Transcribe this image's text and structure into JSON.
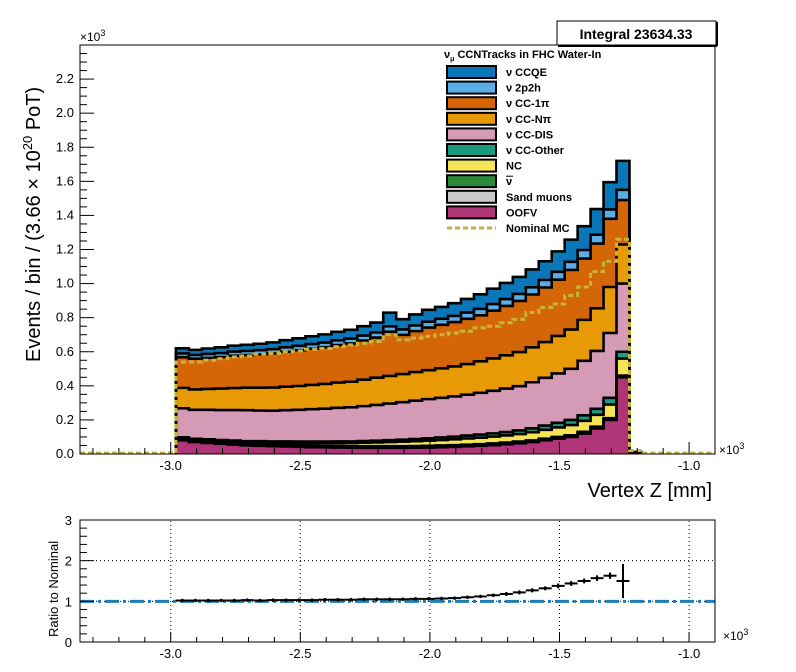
{
  "chart_data": [
    {
      "type": "area",
      "stacked": true,
      "histogram": true,
      "title": "",
      "xlabel": "Vertex Z [mm]",
      "ylabel_parts": [
        "Events / bin / (3.66 ",
        "× 10",
        "20",
        " PoT)"
      ],
      "y_multiplier": "×10",
      "y_multiplier_exp": "3",
      "x_multiplier": "×10",
      "x_multiplier_exp": "3",
      "xlim": [
        -3.35,
        -0.9
      ],
      "ylim": [
        0,
        2.4
      ],
      "x_ticks": [
        -3.0,
        -2.5,
        -2.0,
        -1.5,
        -1.0
      ],
      "x_tick_labels": [
        "-3.0",
        "-2.5",
        "-2.0",
        "-1.5",
        "-1.0"
      ],
      "y_ticks": [
        0,
        0.2,
        0.4,
        0.6,
        0.8,
        1.0,
        1.2,
        1.4,
        1.6,
        1.8,
        2.0,
        2.2
      ],
      "y_tick_labels": [
        "0.0",
        "0.2",
        "0.4",
        "0.6",
        "0.8",
        "1.0",
        "1.2",
        "1.4",
        "1.6",
        "1.8",
        "2.0",
        "2.2"
      ],
      "integral_label": "Integral 23634.33",
      "legend_placement": "top-right",
      "legend_title_parts": [
        "ν",
        "μ",
        " CCNTracks in FHC Water-In"
      ],
      "bin_edges": [
        -2.98,
        -2.93,
        -2.88,
        -2.83,
        -2.78,
        -2.73,
        -2.68,
        -2.63,
        -2.58,
        -2.53,
        -2.48,
        -2.43,
        -2.38,
        -2.33,
        -2.28,
        -2.23,
        -2.18,
        -2.13,
        -2.08,
        -2.03,
        -1.98,
        -1.93,
        -1.88,
        -1.83,
        -1.78,
        -1.73,
        -1.68,
        -1.63,
        -1.58,
        -1.53,
        -1.48,
        -1.43,
        -1.38,
        -1.33,
        -1.28,
        -1.23
      ],
      "series": [
        {
          "name": "OOFV",
          "color": "#b03478",
          "values": [
            0.08,
            0.07,
            0.065,
            0.06,
            0.055,
            0.05,
            0.048,
            0.046,
            0.044,
            0.042,
            0.04,
            0.039,
            0.038,
            0.037,
            0.036,
            0.036,
            0.036,
            0.036,
            0.037,
            0.038,
            0.04,
            0.042,
            0.045,
            0.048,
            0.052,
            0.057,
            0.063,
            0.07,
            0.08,
            0.09,
            0.1,
            0.12,
            0.15,
            0.2,
            0.45
          ]
        },
        {
          "name": "Sand muons",
          "color": "#c8c8c8",
          "values": [
            0.005,
            0.005,
            0.005,
            0.005,
            0.005,
            0.005,
            0.005,
            0.005,
            0.005,
            0.005,
            0.005,
            0.005,
            0.005,
            0.005,
            0.005,
            0.005,
            0.005,
            0.005,
            0.005,
            0.005,
            0.005,
            0.005,
            0.005,
            0.005,
            0.005,
            0.005,
            0.005,
            0.005,
            0.005,
            0.005,
            0.005,
            0.005,
            0.005,
            0.005,
            0.005
          ]
        },
        {
          "name": "ν̅",
          "name_base": "ν",
          "overline": true,
          "color": "#2a8a3a",
          "values": [
            0.005,
            0.005,
            0.005,
            0.005,
            0.005,
            0.005,
            0.005,
            0.005,
            0.005,
            0.005,
            0.005,
            0.005,
            0.005,
            0.005,
            0.005,
            0.005,
            0.005,
            0.005,
            0.005,
            0.005,
            0.005,
            0.005,
            0.005,
            0.005,
            0.005,
            0.005,
            0.005,
            0.005,
            0.005,
            0.005,
            0.005,
            0.005,
            0.005,
            0.005,
            0.005
          ]
        },
        {
          "name": "NC",
          "color": "#f5e556",
          "values": [
            0.005,
            0.006,
            0.007,
            0.008,
            0.009,
            0.01,
            0.011,
            0.012,
            0.013,
            0.014,
            0.015,
            0.016,
            0.017,
            0.018,
            0.02,
            0.022,
            0.024,
            0.026,
            0.028,
            0.03,
            0.032,
            0.034,
            0.036,
            0.038,
            0.04,
            0.042,
            0.044,
            0.048,
            0.052,
            0.056,
            0.06,
            0.065,
            0.07,
            0.08,
            0.1
          ]
        },
        {
          "name": "ν CC-Other",
          "color": "#1a9a7e",
          "values": [
            0.003,
            0.003,
            0.004,
            0.004,
            0.005,
            0.005,
            0.006,
            0.006,
            0.007,
            0.007,
            0.008,
            0.008,
            0.009,
            0.009,
            0.01,
            0.01,
            0.011,
            0.012,
            0.013,
            0.014,
            0.015,
            0.016,
            0.017,
            0.018,
            0.019,
            0.02,
            0.021,
            0.023,
            0.025,
            0.027,
            0.03,
            0.032,
            0.035,
            0.04,
            0.04
          ]
        },
        {
          "name": "ν CC-DIS",
          "color": "#d49ab6",
          "values": [
            0.17,
            0.17,
            0.173,
            0.176,
            0.179,
            0.182,
            0.18,
            0.18,
            0.183,
            0.186,
            0.19,
            0.193,
            0.197,
            0.2,
            0.205,
            0.21,
            0.215,
            0.22,
            0.225,
            0.23,
            0.233,
            0.236,
            0.24,
            0.245,
            0.25,
            0.255,
            0.26,
            0.27,
            0.28,
            0.29,
            0.3,
            0.32,
            0.34,
            0.38,
            0.4
          ]
        },
        {
          "name": "ν CC-Nπ",
          "color": "#e89a06",
          "values": [
            0.12,
            0.12,
            0.123,
            0.126,
            0.129,
            0.132,
            0.134,
            0.136,
            0.138,
            0.14,
            0.142,
            0.145,
            0.148,
            0.15,
            0.155,
            0.16,
            0.162,
            0.165,
            0.168,
            0.17,
            0.173,
            0.176,
            0.18,
            0.185,
            0.19,
            0.195,
            0.2,
            0.205,
            0.21,
            0.22,
            0.23,
            0.24,
            0.25,
            0.27,
            0.23
          ]
        },
        {
          "name": "ν CC-1π",
          "color": "#d46608",
          "values": [
            0.18,
            0.18,
            0.182,
            0.185,
            0.19,
            0.192,
            0.195,
            0.2,
            0.205,
            0.21,
            0.213,
            0.216,
            0.22,
            0.225,
            0.23,
            0.235,
            0.26,
            0.23,
            0.24,
            0.25,
            0.255,
            0.26,
            0.265,
            0.27,
            0.28,
            0.29,
            0.3,
            0.31,
            0.32,
            0.33,
            0.35,
            0.36,
            0.38,
            0.4,
            0.26
          ]
        },
        {
          "name": "ν 2p2h",
          "color": "#5aaee6",
          "values": [
            0.022,
            0.022,
            0.023,
            0.023,
            0.024,
            0.024,
            0.025,
            0.025,
            0.026,
            0.026,
            0.027,
            0.027,
            0.028,
            0.028,
            0.029,
            0.03,
            0.031,
            0.032,
            0.033,
            0.034,
            0.035,
            0.036,
            0.037,
            0.038,
            0.039,
            0.04,
            0.041,
            0.042,
            0.044,
            0.046,
            0.048,
            0.05,
            0.052,
            0.055,
            0.06
          ]
        },
        {
          "name": "ν CCQE",
          "color": "#0a78b8",
          "values": [
            0.03,
            0.03,
            0.032,
            0.034,
            0.035,
            0.036,
            0.038,
            0.04,
            0.042,
            0.044,
            0.046,
            0.048,
            0.05,
            0.052,
            0.055,
            0.058,
            0.08,
            0.06,
            0.065,
            0.07,
            0.07,
            0.075,
            0.08,
            0.085,
            0.09,
            0.095,
            0.1,
            0.105,
            0.11,
            0.12,
            0.13,
            0.14,
            0.15,
            0.16,
            0.17
          ]
        }
      ],
      "nominal_mc": {
        "name": "Nominal MC",
        "color": "#c8b43c",
        "values": [
          0.54,
          0.54,
          0.55,
          0.56,
          0.57,
          0.575,
          0.585,
          0.59,
          0.6,
          0.605,
          0.615,
          0.62,
          0.63,
          0.64,
          0.65,
          0.66,
          0.7,
          0.67,
          0.68,
          0.69,
          0.7,
          0.71,
          0.72,
          0.74,
          0.75,
          0.77,
          0.79,
          0.83,
          0.86,
          0.88,
          0.93,
          0.98,
          1.07,
          1.13,
          1.26
        ],
        "tail_bin": {
          "x0": -1.23,
          "x1": -1.18,
          "value": 0.02
        }
      },
      "tail_bin": {
        "x0": -1.23,
        "x1": -1.18,
        "value": 0.02
      }
    },
    {
      "type": "scatter",
      "xlabel": "",
      "ylabel": "Ratio to Nominal",
      "x_multiplier": "×10",
      "x_multiplier_exp": "3",
      "xlim": [
        -3.35,
        -0.9
      ],
      "ylim": [
        0,
        3
      ],
      "x_ticks": [
        -3.0,
        -2.5,
        -2.0,
        -1.5,
        -1.0
      ],
      "x_tick_labels": [
        "-3.0",
        "-2.5",
        "-2.0",
        "-1.5",
        "-1.0"
      ],
      "y_ticks": [
        0,
        1,
        2,
        3
      ],
      "y_tick_labels": [
        "0",
        "1",
        "2",
        "3"
      ],
      "grid": true,
      "reference_line": {
        "y": 1,
        "color": "#1c7fb8"
      },
      "points": {
        "x": [
          -2.955,
          -2.905,
          -2.855,
          -2.805,
          -2.755,
          -2.705,
          -2.655,
          -2.605,
          -2.555,
          -2.505,
          -2.455,
          -2.405,
          -2.355,
          -2.305,
          -2.255,
          -2.205,
          -2.155,
          -2.105,
          -2.055,
          -2.005,
          -1.955,
          -1.905,
          -1.855,
          -1.805,
          -1.755,
          -1.705,
          -1.655,
          -1.605,
          -1.555,
          -1.505,
          -1.455,
          -1.405,
          -1.355,
          -1.305,
          -1.255
        ],
        "y": [
          1.02,
          1.02,
          1.02,
          1.02,
          1.02,
          1.03,
          1.02,
          1.03,
          1.03,
          1.03,
          1.03,
          1.04,
          1.04,
          1.04,
          1.05,
          1.05,
          1.05,
          1.05,
          1.06,
          1.06,
          1.07,
          1.08,
          1.1,
          1.12,
          1.15,
          1.18,
          1.22,
          1.27,
          1.32,
          1.38,
          1.44,
          1.5,
          1.57,
          1.63,
          1.5
        ],
        "yerr": [
          0.04,
          0.04,
          0.04,
          0.04,
          0.04,
          0.04,
          0.04,
          0.04,
          0.04,
          0.04,
          0.04,
          0.04,
          0.04,
          0.04,
          0.04,
          0.04,
          0.04,
          0.04,
          0.04,
          0.04,
          0.04,
          0.04,
          0.04,
          0.04,
          0.04,
          0.05,
          0.05,
          0.05,
          0.05,
          0.06,
          0.06,
          0.06,
          0.07,
          0.08,
          0.42
        ],
        "xerr": 0.025
      }
    }
  ]
}
